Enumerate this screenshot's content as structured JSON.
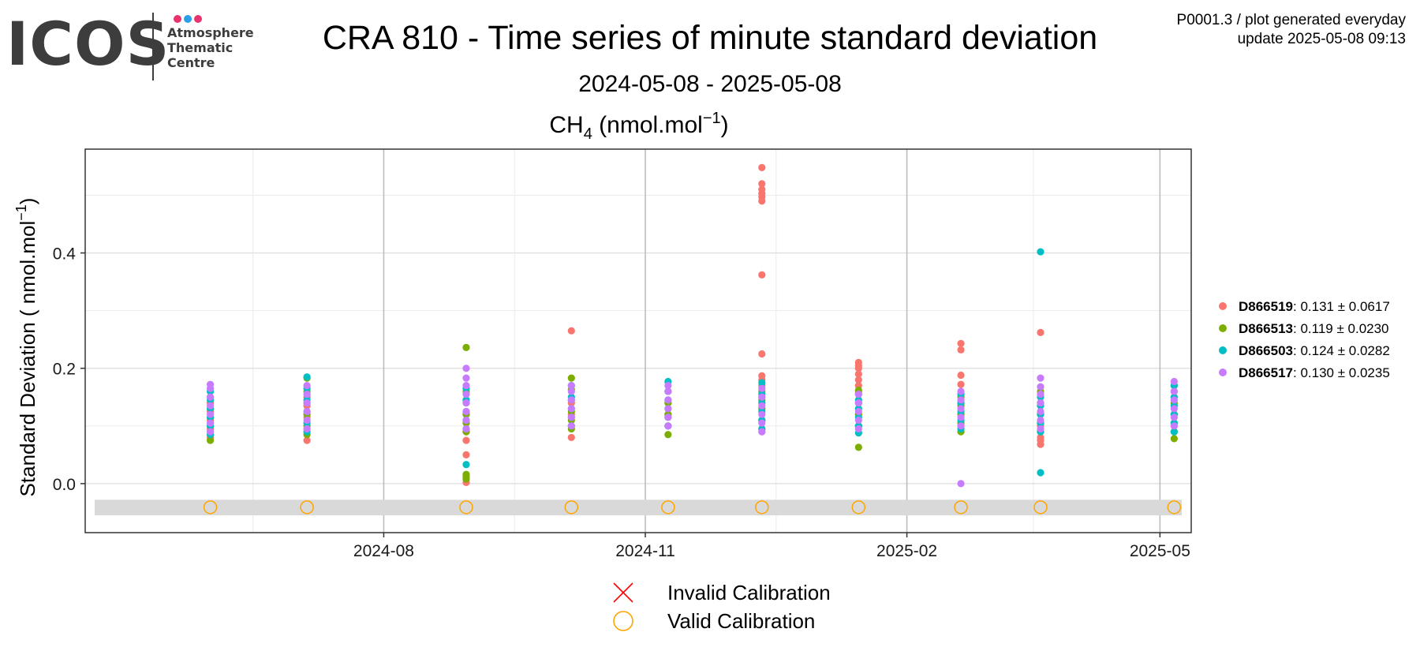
{
  "logo": {
    "word": "ICOS",
    "lines": [
      "Atmosphere",
      "Thematic",
      "Centre"
    ],
    "dot_colors": [
      "#e8336e",
      "#2a9ee8",
      "#e8336e"
    ]
  },
  "header": {
    "title": "CRA 810 - Time series of minute standard deviation",
    "subtitle": "2024-05-08 - 2025-05-08",
    "meta_line1": "P0001.3 / plot generated everyday",
    "meta_line2": "update  2025-05-08 09:13"
  },
  "chart_data": {
    "type": "scatter",
    "panel_title": {
      "base": "CH",
      "sub": "4",
      "units": " (nmol.mol",
      "sup": "−1",
      "close": ")"
    },
    "ylabel": {
      "text": "Standard Deviation ( nmol.mol",
      "sup": "−1",
      "close": ")"
    },
    "x_ticks": [
      "2024-08-01",
      "2024-11-01",
      "2025-02-01",
      "2025-05-01"
    ],
    "x_tick_labels": [
      "2024-08",
      "2024-11",
      "2025-02",
      "2025-05"
    ],
    "xlim": [
      "2024-04-18",
      "2025-05-12"
    ],
    "ylim": [
      -0.085,
      0.58
    ],
    "y_ticks": [
      0.0,
      0.2,
      0.4
    ],
    "y_tick_labels": [
      "0.0",
      "0.2",
      "0.4"
    ],
    "grid": true,
    "legend_position": "right",
    "calibration_band": [
      -0.055,
      -0.028
    ],
    "calibration_dates": [
      "2024-06-01",
      "2024-07-05",
      "2024-08-30",
      "2024-10-06",
      "2024-11-09",
      "2024-12-12",
      "2025-01-15",
      "2025-02-20",
      "2025-03-20",
      "2025-05-06"
    ],
    "calibration_y": -0.041,
    "series": [
      {
        "name": "D866519",
        "stats": ": 0.131 ± 0.0617",
        "color": "#F8766D",
        "points": [
          [
            "2024-06-01",
            0.08
          ],
          [
            "2024-06-01",
            0.095
          ],
          [
            "2024-06-01",
            0.11
          ],
          [
            "2024-06-01",
            0.125
          ],
          [
            "2024-06-01",
            0.14
          ],
          [
            "2024-07-05",
            0.075
          ],
          [
            "2024-07-05",
            0.095
          ],
          [
            "2024-07-05",
            0.115
          ],
          [
            "2024-07-05",
            0.135
          ],
          [
            "2024-07-05",
            0.15
          ],
          [
            "2024-08-30",
            0.002
          ],
          [
            "2024-08-30",
            0.05
          ],
          [
            "2024-08-30",
            0.075
          ],
          [
            "2024-08-30",
            0.09
          ],
          [
            "2024-08-30",
            0.12
          ],
          [
            "2024-08-30",
            0.145
          ],
          [
            "2024-10-06",
            0.08
          ],
          [
            "2024-10-06",
            0.1
          ],
          [
            "2024-10-06",
            0.12
          ],
          [
            "2024-10-06",
            0.14
          ],
          [
            "2024-10-06",
            0.265
          ],
          [
            "2024-11-09",
            0.1
          ],
          [
            "2024-11-09",
            0.12
          ],
          [
            "2024-11-09",
            0.14
          ],
          [
            "2024-12-12",
            0.09
          ],
          [
            "2024-12-12",
            0.11
          ],
          [
            "2024-12-12",
            0.13
          ],
          [
            "2024-12-12",
            0.15
          ],
          [
            "2024-12-12",
            0.17
          ],
          [
            "2024-12-12",
            0.18
          ],
          [
            "2024-12-12",
            0.187
          ],
          [
            "2024-12-12",
            0.225
          ],
          [
            "2024-12-12",
            0.362
          ],
          [
            "2024-12-12",
            0.49
          ],
          [
            "2024-12-12",
            0.497
          ],
          [
            "2024-12-12",
            0.503
          ],
          [
            "2024-12-12",
            0.51
          ],
          [
            "2024-12-12",
            0.52
          ],
          [
            "2024-12-12",
            0.548
          ],
          [
            "2025-01-15",
            0.1
          ],
          [
            "2025-01-15",
            0.12
          ],
          [
            "2025-01-15",
            0.14
          ],
          [
            "2025-01-15",
            0.16
          ],
          [
            "2025-01-15",
            0.17
          ],
          [
            "2025-01-15",
            0.18
          ],
          [
            "2025-01-15",
            0.19
          ],
          [
            "2025-01-15",
            0.2
          ],
          [
            "2025-01-15",
            0.205
          ],
          [
            "2025-01-15",
            0.21
          ],
          [
            "2025-02-20",
            0.1
          ],
          [
            "2025-02-20",
            0.12
          ],
          [
            "2025-02-20",
            0.14
          ],
          [
            "2025-02-20",
            0.172
          ],
          [
            "2025-02-20",
            0.188
          ],
          [
            "2025-02-20",
            0.232
          ],
          [
            "2025-02-20",
            0.243
          ],
          [
            "2025-03-20",
            0.068
          ],
          [
            "2025-03-20",
            0.075
          ],
          [
            "2025-03-20",
            0.08
          ],
          [
            "2025-03-20",
            0.1
          ],
          [
            "2025-03-20",
            0.12
          ],
          [
            "2025-03-20",
            0.262
          ],
          [
            "2025-05-06",
            0.1
          ],
          [
            "2025-05-06",
            0.12
          ],
          [
            "2025-05-06",
            0.135
          ],
          [
            "2025-05-06",
            0.15
          ]
        ]
      },
      {
        "name": "D866513",
        "stats": ": 0.119 ± 0.0230",
        "color": "#7CAE00",
        "points": [
          [
            "2024-06-01",
            0.075
          ],
          [
            "2024-06-01",
            0.085
          ],
          [
            "2024-06-01",
            0.1
          ],
          [
            "2024-06-01",
            0.115
          ],
          [
            "2024-06-01",
            0.13
          ],
          [
            "2024-06-01",
            0.15
          ],
          [
            "2024-07-05",
            0.085
          ],
          [
            "2024-07-05",
            0.1
          ],
          [
            "2024-07-05",
            0.12
          ],
          [
            "2024-07-05",
            0.14
          ],
          [
            "2024-07-05",
            0.16
          ],
          [
            "2024-07-05",
            0.183
          ],
          [
            "2024-08-30",
            0.008
          ],
          [
            "2024-08-30",
            0.012
          ],
          [
            "2024-08-30",
            0.016
          ],
          [
            "2024-08-30",
            0.09
          ],
          [
            "2024-08-30",
            0.105
          ],
          [
            "2024-08-30",
            0.12
          ],
          [
            "2024-08-30",
            0.14
          ],
          [
            "2024-08-30",
            0.16
          ],
          [
            "2024-08-30",
            0.236
          ],
          [
            "2024-10-06",
            0.095
          ],
          [
            "2024-10-06",
            0.11
          ],
          [
            "2024-10-06",
            0.125
          ],
          [
            "2024-10-06",
            0.145
          ],
          [
            "2024-10-06",
            0.163
          ],
          [
            "2024-10-06",
            0.183
          ],
          [
            "2024-11-09",
            0.085
          ],
          [
            "2024-11-09",
            0.1
          ],
          [
            "2024-11-09",
            0.12
          ],
          [
            "2024-11-09",
            0.14
          ],
          [
            "2024-11-09",
            0.16
          ],
          [
            "2024-12-12",
            0.095
          ],
          [
            "2024-12-12",
            0.11
          ],
          [
            "2024-12-12",
            0.13
          ],
          [
            "2024-12-12",
            0.145
          ],
          [
            "2024-12-12",
            0.16
          ],
          [
            "2025-01-15",
            0.063
          ],
          [
            "2025-01-15",
            0.1
          ],
          [
            "2025-01-15",
            0.12
          ],
          [
            "2025-01-15",
            0.14
          ],
          [
            "2025-01-15",
            0.155
          ],
          [
            "2025-01-15",
            0.162
          ],
          [
            "2025-02-20",
            0.09
          ],
          [
            "2025-02-20",
            0.105
          ],
          [
            "2025-02-20",
            0.12
          ],
          [
            "2025-02-20",
            0.135
          ],
          [
            "2025-02-20",
            0.15
          ],
          [
            "2025-03-20",
            0.09
          ],
          [
            "2025-03-20",
            0.105
          ],
          [
            "2025-03-20",
            0.12
          ],
          [
            "2025-03-20",
            0.14
          ],
          [
            "2025-03-20",
            0.16
          ],
          [
            "2025-05-06",
            0.078
          ],
          [
            "2025-05-06",
            0.09
          ],
          [
            "2025-05-06",
            0.105
          ],
          [
            "2025-05-06",
            0.12
          ],
          [
            "2025-05-06",
            0.14
          ],
          [
            "2025-05-06",
            0.16
          ],
          [
            "2025-05-06",
            0.17
          ]
        ]
      },
      {
        "name": "D866503",
        "stats": ": 0.124 ± 0.0282",
        "color": "#00BFC4",
        "points": [
          [
            "2024-06-01",
            0.085
          ],
          [
            "2024-06-01",
            0.1
          ],
          [
            "2024-06-01",
            0.115
          ],
          [
            "2024-06-01",
            0.13
          ],
          [
            "2024-06-01",
            0.145
          ],
          [
            "2024-06-01",
            0.16
          ],
          [
            "2024-07-05",
            0.09
          ],
          [
            "2024-07-05",
            0.105
          ],
          [
            "2024-07-05",
            0.125
          ],
          [
            "2024-07-05",
            0.145
          ],
          [
            "2024-07-05",
            0.165
          ],
          [
            "2024-07-05",
            0.185
          ],
          [
            "2024-08-30",
            0.033
          ],
          [
            "2024-08-30",
            0.095
          ],
          [
            "2024-08-30",
            0.11
          ],
          [
            "2024-08-30",
            0.125
          ],
          [
            "2024-08-30",
            0.145
          ],
          [
            "2024-08-30",
            0.165
          ],
          [
            "2024-10-06",
            0.1
          ],
          [
            "2024-10-06",
            0.115
          ],
          [
            "2024-10-06",
            0.13
          ],
          [
            "2024-10-06",
            0.15
          ],
          [
            "2024-10-06",
            0.17
          ],
          [
            "2024-11-09",
            0.1
          ],
          [
            "2024-11-09",
            0.115
          ],
          [
            "2024-11-09",
            0.13
          ],
          [
            "2024-11-09",
            0.145
          ],
          [
            "2024-11-09",
            0.16
          ],
          [
            "2024-11-09",
            0.177
          ],
          [
            "2024-12-12",
            0.095
          ],
          [
            "2024-12-12",
            0.11
          ],
          [
            "2024-12-12",
            0.125
          ],
          [
            "2024-12-12",
            0.14
          ],
          [
            "2024-12-12",
            0.155
          ],
          [
            "2024-12-12",
            0.175
          ],
          [
            "2025-01-15",
            0.088
          ],
          [
            "2025-01-15",
            0.1
          ],
          [
            "2025-01-15",
            0.115
          ],
          [
            "2025-01-15",
            0.13
          ],
          [
            "2025-01-15",
            0.145
          ],
          [
            "2025-02-20",
            0.095
          ],
          [
            "2025-02-20",
            0.11
          ],
          [
            "2025-02-20",
            0.125
          ],
          [
            "2025-02-20",
            0.14
          ],
          [
            "2025-02-20",
            0.155
          ],
          [
            "2025-03-20",
            0.019
          ],
          [
            "2025-03-20",
            0.09
          ],
          [
            "2025-03-20",
            0.105
          ],
          [
            "2025-03-20",
            0.12
          ],
          [
            "2025-03-20",
            0.135
          ],
          [
            "2025-03-20",
            0.15
          ],
          [
            "2025-03-20",
            0.402
          ],
          [
            "2025-05-06",
            0.09
          ],
          [
            "2025-05-06",
            0.105
          ],
          [
            "2025-05-06",
            0.12
          ],
          [
            "2025-05-06",
            0.135
          ],
          [
            "2025-05-06",
            0.15
          ],
          [
            "2025-05-06",
            0.17
          ]
        ]
      },
      {
        "name": "D866517",
        "stats": ": 0.130 ± 0.0235",
        "color": "#C77CFF",
        "points": [
          [
            "2024-06-01",
            0.09
          ],
          [
            "2024-06-01",
            0.105
          ],
          [
            "2024-06-01",
            0.12
          ],
          [
            "2024-06-01",
            0.135
          ],
          [
            "2024-06-01",
            0.15
          ],
          [
            "2024-06-01",
            0.165
          ],
          [
            "2024-06-01",
            0.172
          ],
          [
            "2024-07-05",
            0.095
          ],
          [
            "2024-07-05",
            0.11
          ],
          [
            "2024-07-05",
            0.125
          ],
          [
            "2024-07-05",
            0.14
          ],
          [
            "2024-07-05",
            0.155
          ],
          [
            "2024-07-05",
            0.17
          ],
          [
            "2024-08-30",
            0.095
          ],
          [
            "2024-08-30",
            0.11
          ],
          [
            "2024-08-30",
            0.125
          ],
          [
            "2024-08-30",
            0.14
          ],
          [
            "2024-08-30",
            0.155
          ],
          [
            "2024-08-30",
            0.17
          ],
          [
            "2024-08-30",
            0.183
          ],
          [
            "2024-08-30",
            0.2
          ],
          [
            "2024-10-06",
            0.1
          ],
          [
            "2024-10-06",
            0.115
          ],
          [
            "2024-10-06",
            0.13
          ],
          [
            "2024-10-06",
            0.145
          ],
          [
            "2024-10-06",
            0.16
          ],
          [
            "2024-10-06",
            0.17
          ],
          [
            "2024-11-09",
            0.1
          ],
          [
            "2024-11-09",
            0.115
          ],
          [
            "2024-11-09",
            0.13
          ],
          [
            "2024-11-09",
            0.145
          ],
          [
            "2024-11-09",
            0.16
          ],
          [
            "2024-11-09",
            0.17
          ],
          [
            "2024-12-12",
            0.09
          ],
          [
            "2024-12-12",
            0.105
          ],
          [
            "2024-12-12",
            0.12
          ],
          [
            "2024-12-12",
            0.135
          ],
          [
            "2024-12-12",
            0.15
          ],
          [
            "2024-12-12",
            0.165
          ],
          [
            "2025-01-15",
            0.095
          ],
          [
            "2025-01-15",
            0.11
          ],
          [
            "2025-01-15",
            0.125
          ],
          [
            "2025-01-15",
            0.14
          ],
          [
            "2025-01-15",
            0.155
          ],
          [
            "2025-02-20",
            0.0
          ],
          [
            "2025-02-20",
            0.1
          ],
          [
            "2025-02-20",
            0.115
          ],
          [
            "2025-02-20",
            0.13
          ],
          [
            "2025-02-20",
            0.145
          ],
          [
            "2025-02-20",
            0.16
          ],
          [
            "2025-03-20",
            0.095
          ],
          [
            "2025-03-20",
            0.11
          ],
          [
            "2025-03-20",
            0.125
          ],
          [
            "2025-03-20",
            0.14
          ],
          [
            "2025-03-20",
            0.155
          ],
          [
            "2025-03-20",
            0.168
          ],
          [
            "2025-03-20",
            0.183
          ],
          [
            "2025-05-06",
            0.1
          ],
          [
            "2025-05-06",
            0.115
          ],
          [
            "2025-05-06",
            0.13
          ],
          [
            "2025-05-06",
            0.145
          ],
          [
            "2025-05-06",
            0.16
          ],
          [
            "2025-05-06",
            0.177
          ]
        ]
      }
    ],
    "bottom_legend": [
      {
        "symbol": "cross",
        "color": "#FF0000",
        "label": "Invalid Calibration"
      },
      {
        "symbol": "circle",
        "color": "#FFA500",
        "label": "Valid Calibration"
      }
    ]
  }
}
